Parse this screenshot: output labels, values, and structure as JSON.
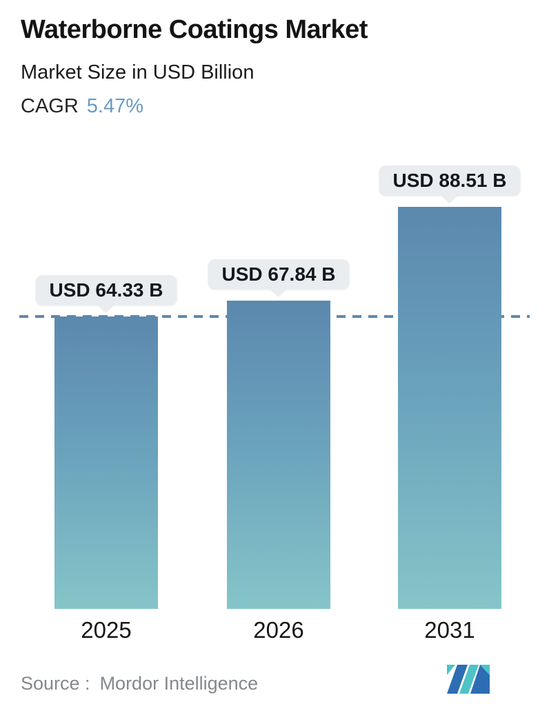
{
  "header": {
    "title": "Waterborne Coatings Market",
    "subtitle": "Market Size in USD Billion",
    "cagr_label": "CAGR",
    "cagr_value": "5.47%"
  },
  "chart_data": {
    "type": "bar",
    "title": "Waterborne Coatings Market",
    "subtitle": "Market Size in USD Billion",
    "unit": "USD Billion",
    "cagr_percent": 5.47,
    "categories": [
      "2025",
      "2026",
      "2031"
    ],
    "values": [
      64.33,
      67.84,
      88.51
    ],
    "value_labels": [
      "USD 64.33 B",
      "USD 67.84 B",
      "USD 88.51 B"
    ],
    "ylim": [
      0,
      95
    ],
    "grid": false,
    "legend": "none",
    "reference_line": {
      "value": 64.33,
      "style": "dashed",
      "color": "#5d89ac"
    },
    "bar_colors": {
      "top": "#5b88ae",
      "bottom": "#85c5c8"
    },
    "callout_background": "#e9edf0"
  },
  "footer": {
    "source_label": "Source :",
    "source_value": "Mordor Intelligence",
    "logo_name": "mordor-intelligence-logo",
    "logo_colors": {
      "teal": "#4ec3c7",
      "blue": "#2d6db4"
    }
  }
}
